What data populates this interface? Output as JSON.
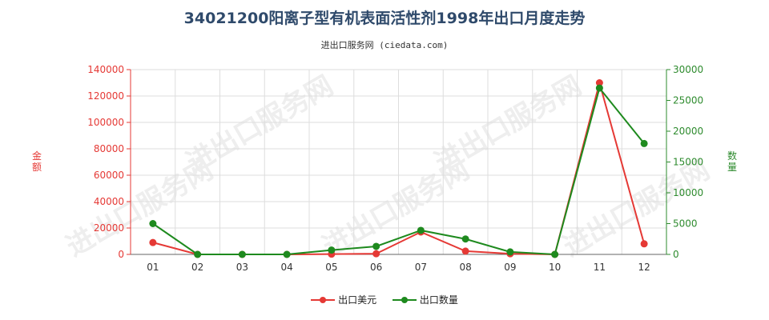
{
  "chart_data": {
    "type": "line",
    "title": "34021200阳离子型有机表面活性剂1998年出口月度走势",
    "subtitle": "进出口服务网 (ciedata.com)",
    "watermark": "进出口服务网",
    "categories": [
      "01",
      "02",
      "03",
      "04",
      "05",
      "06",
      "07",
      "08",
      "09",
      "10",
      "11",
      "12"
    ],
    "y_left": {
      "label": "金额",
      "min": 0,
      "max": 140000,
      "ticks": [
        "0",
        "20000",
        "40000",
        "60000",
        "80000",
        "100000",
        "120000",
        "140000"
      ]
    },
    "y_right": {
      "label": "数量",
      "min": 0,
      "max": 30000,
      "ticks": [
        "0",
        "5000",
        "10000",
        "15000",
        "20000",
        "25000",
        "30000"
      ]
    },
    "grid": true,
    "legend_position": "bottom",
    "series": [
      {
        "name": "出口美元",
        "axis": "left",
        "color": "#e53935",
        "values": [
          9000,
          0,
          0,
          0,
          200,
          500,
          17000,
          2500,
          500,
          0,
          130000,
          8000
        ]
      },
      {
        "name": "出口数量",
        "axis": "right",
        "color": "#1e8a1e",
        "values": [
          5000,
          0,
          0,
          0,
          700,
          1300,
          3900,
          2500,
          400,
          0,
          27000,
          18000
        ]
      }
    ]
  }
}
